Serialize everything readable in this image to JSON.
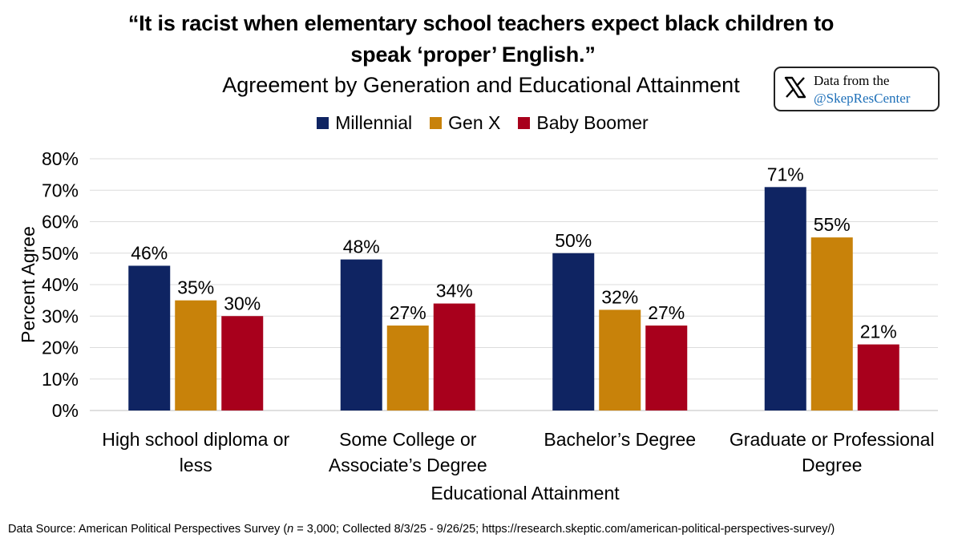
{
  "chart_data": {
    "type": "bar",
    "title_line1": "“It is racist when elementary school teachers expect black children to",
    "title_line2": "speak ‘proper’ English.”",
    "subtitle": "Agreement by Generation and Educational Attainment",
    "categories": [
      [
        "High school diploma or",
        "less"
      ],
      [
        "Some College or",
        "Associate’s Degree"
      ],
      [
        "Bachelor’s Degree"
      ],
      [
        "Graduate or Professional",
        "Degree"
      ]
    ],
    "series": [
      {
        "name": "Millennial",
        "color": "#0f2462",
        "values": [
          46,
          48,
          50,
          71
        ]
      },
      {
        "name": "Gen X",
        "color": "#c8820a",
        "values": [
          35,
          27,
          32,
          55
        ]
      },
      {
        "name": "Baby Boomer",
        "color": "#a8001c",
        "values": [
          30,
          34,
          27,
          21
        ]
      }
    ],
    "value_suffix": "%",
    "xlabel": "Educational Attainment",
    "ylabel": "Percent Agree",
    "ylim": [
      0,
      80
    ],
    "yticks": [
      0,
      10,
      20,
      30,
      40,
      50,
      60,
      70,
      80
    ],
    "grid": true,
    "legend": "top-center"
  },
  "badge": {
    "icon": "x-logo-icon",
    "line1": "Data from the",
    "line2": "@SkepResCenter"
  },
  "source": {
    "prefix": "Data Source: American Political Perspectives Survey (",
    "n_var": "n",
    "rest": " = 3,000; Collected 8/3/25 - 9/26/25; https://research.skeptic.com/american-political-perspectives-survey/)"
  }
}
